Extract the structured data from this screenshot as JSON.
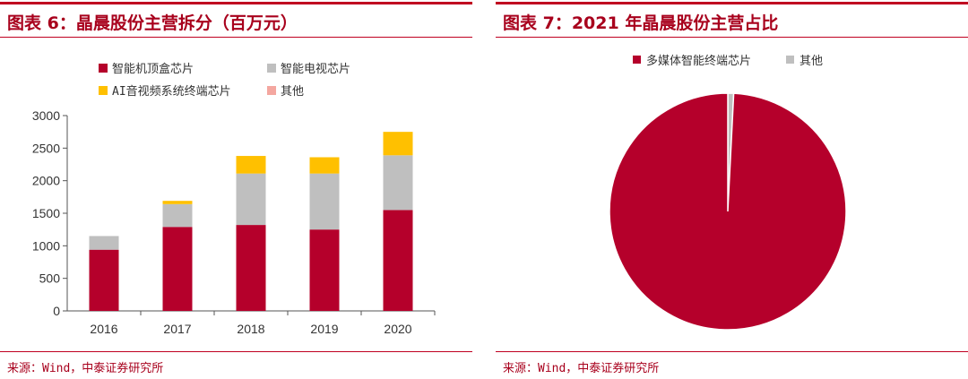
{
  "left": {
    "title": "图表 6：晶晨股份主营拆分（百万元）",
    "source": "来源：Wind，中泰证券研究所",
    "chart_data": {
      "type": "bar",
      "stacked": true,
      "categories": [
        "2016",
        "2017",
        "2018",
        "2019",
        "2020"
      ],
      "series": [
        {
          "name": "智能机顶盒芯片",
          "color": "#b5002b",
          "values": [
            940,
            1290,
            1320,
            1250,
            1550
          ]
        },
        {
          "name": "智能电视芯片",
          "color": "#bfbfbf",
          "values": [
            210,
            350,
            790,
            860,
            840
          ]
        },
        {
          "name": "AI音视频系统终端芯片",
          "color": "#ffc000",
          "values": [
            0,
            50,
            270,
            250,
            360
          ]
        },
        {
          "name": "其他",
          "color": "#f4a7a0",
          "values": [
            0,
            0,
            0,
            0,
            0
          ]
        }
      ],
      "ylim": [
        0,
        3000
      ],
      "yticks": [
        0,
        500,
        1000,
        1500,
        2000,
        2500,
        3000
      ],
      "title": "",
      "xlabel": "",
      "ylabel": ""
    }
  },
  "right": {
    "title": "图表 7：2021 年晶晨股份主营占比",
    "source": "来源：Wind，中泰证券研究所",
    "chart_data": {
      "type": "pie",
      "labels": [
        "多媒体智能终端芯片",
        "其他"
      ],
      "values": [
        99.2,
        0.8
      ],
      "colors": [
        "#b5002b",
        "#bfbfbf"
      ],
      "title": ""
    }
  }
}
